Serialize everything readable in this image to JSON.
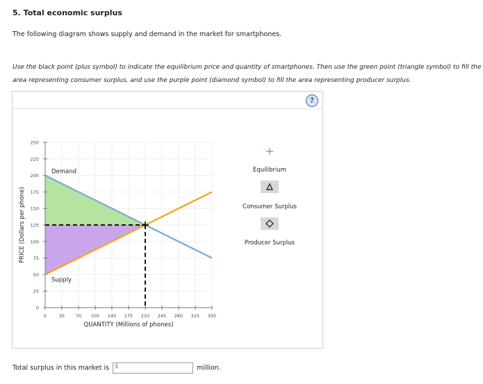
{
  "header": {
    "title": "5. Total economic surplus",
    "intro": "The following diagram shows supply and demand in the market for smartphones.",
    "instructions": "Use the black point (plus symbol) to indicate the equilibrium price and quantity of smartphones. Then use the green point (triangle symbol) to fill the area representing consumer surplus, and use the purple point (diamond symbol) to fill the area representing producer surplus."
  },
  "panel": {
    "help_label": "?"
  },
  "legend": {
    "equilibrium": "Equilibrium",
    "consumer_surplus": "Consumer Surplus",
    "producer_surplus": "Producer Surplus"
  },
  "footer": {
    "prefix": "Total surplus in this market is",
    "currency": "$",
    "value": "",
    "suffix": "million."
  },
  "colors": {
    "demand": "#7fadd4",
    "supply": "#f5a623",
    "consumer_surplus": "#b7e3a1",
    "producer_surplus": "#c9a6ea",
    "equilibrium": "#000000"
  },
  "chart_data": {
    "type": "line",
    "xlabel": "QUANTITY (Millions of phones)",
    "ylabel": "PRICE (Dollars per phone)",
    "xlim": [
      0,
      350
    ],
    "ylim": [
      0,
      250
    ],
    "xticks": [
      0,
      35,
      70,
      105,
      140,
      175,
      210,
      245,
      280,
      315,
      350
    ],
    "yticks": [
      0,
      25,
      50,
      75,
      100,
      125,
      150,
      175,
      200,
      225,
      250
    ],
    "grid": true,
    "series": [
      {
        "name": "Demand",
        "x": [
          0,
          350
        ],
        "y": [
          200,
          75
        ]
      },
      {
        "name": "Supply",
        "x": [
          0,
          350
        ],
        "y": [
          50,
          175
        ]
      }
    ],
    "equilibrium": {
      "x": 210,
      "y": 125
    },
    "consumer_surplus_polygon": [
      [
        0,
        200
      ],
      [
        210,
        125
      ],
      [
        0,
        125
      ]
    ],
    "producer_surplus_polygon": [
      [
        0,
        50
      ],
      [
        210,
        125
      ],
      [
        0,
        125
      ]
    ]
  }
}
